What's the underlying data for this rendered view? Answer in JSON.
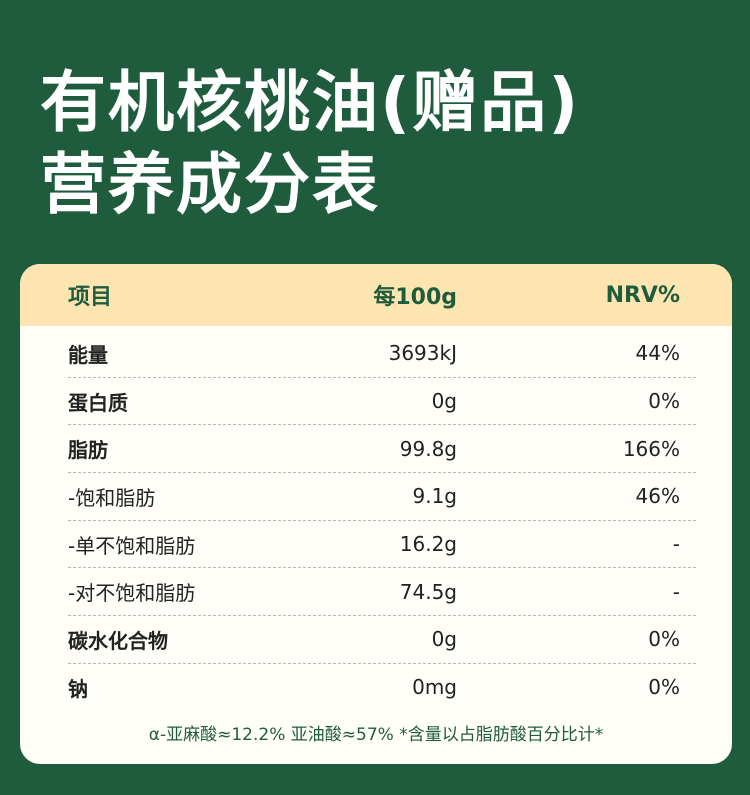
{
  "title_line1": "有机核桃油(赠品)",
  "title_line2": "营养成分表",
  "header": {
    "item": "项目",
    "per100g": "每100g",
    "nrv": "NRV%"
  },
  "rows": [
    {
      "name": "能量",
      "value": "3693kJ",
      "nrv": "44%"
    },
    {
      "name": "蛋白质",
      "value": "0g",
      "nrv": "0%"
    },
    {
      "name": "脂肪",
      "value": "99.8g",
      "nrv": "166%"
    },
    {
      "name": "-饱和脂肪",
      "value": "9.1g",
      "nrv": "46%"
    },
    {
      "name": "-单不饱和脂肪",
      "value": "16.2g",
      "nrv": "-"
    },
    {
      "name": "-对不饱和脂肪",
      "value": "74.5g",
      "nrv": "-"
    },
    {
      "name": "碳水化合物",
      "value": "0g",
      "nrv": "0%"
    },
    {
      "name": "钠",
      "value": "0mg",
      "nrv": "0%"
    }
  ],
  "footnote": "α-亚麻酸≈12.2%  亚油酸≈57%  *含量以占脂肪酸百分比计*",
  "colors": {
    "background": "#1f5c3e",
    "header_bg": "#fde5b2",
    "card_bg": "#fffef9"
  }
}
